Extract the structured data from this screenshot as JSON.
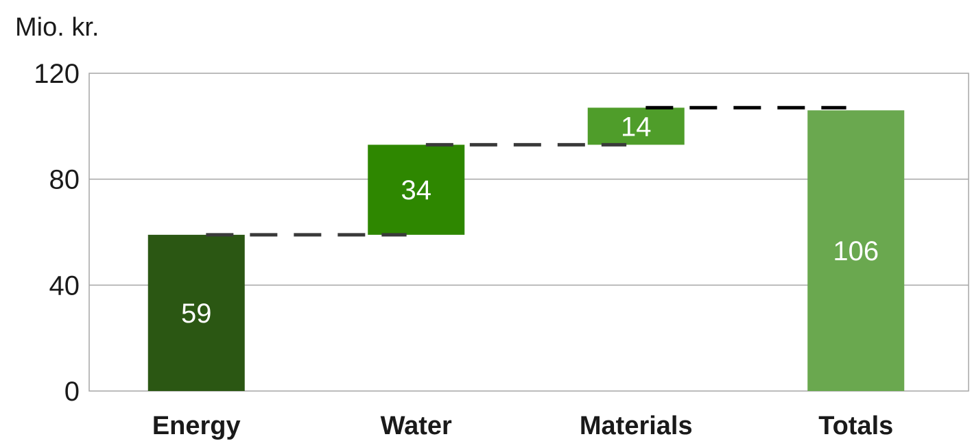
{
  "chart_data": {
    "type": "bar",
    "subtype": "waterfall",
    "unit_label": "Mio. kr.",
    "categories": [
      "Energy",
      "Water",
      "Materials",
      "Totals"
    ],
    "values": [
      59,
      34,
      14,
      106
    ],
    "bar_kinds": [
      "increment",
      "increment",
      "increment",
      "total"
    ],
    "data_labels": [
      "59",
      "34",
      "14",
      "106"
    ],
    "ylim": [
      0,
      120
    ],
    "yticks": [
      0,
      40,
      80,
      120
    ],
    "ytick_labels": [
      "0",
      "40",
      "80",
      "120"
    ],
    "grid": true,
    "legend": "none",
    "colors": [
      "#2b5713",
      "#2e8700",
      "#4f9d2a",
      "#6aa84f"
    ],
    "connector_colors": [
      "#3a3a3a",
      "#3a3a3a",
      "#000000"
    ]
  }
}
